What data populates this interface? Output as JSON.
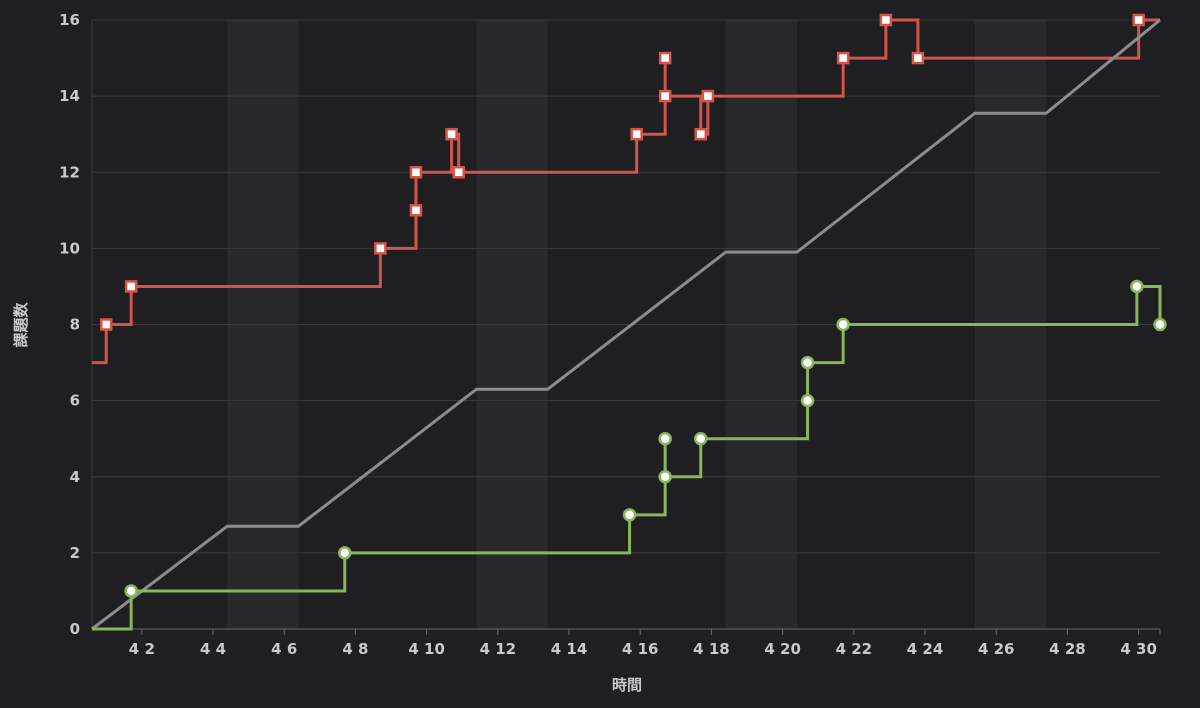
{
  "chart_data": {
    "type": "line",
    "title": "",
    "xlabel": "時間",
    "ylabel": "課題数",
    "grid": true,
    "legend": "none",
    "ylim": [
      0,
      16
    ],
    "xlim": [
      0.6,
      30.6
    ],
    "x_ticks": [
      {
        "value": 2,
        "label": "4 2"
      },
      {
        "value": 4,
        "label": "4 4"
      },
      {
        "value": 6,
        "label": "4 6"
      },
      {
        "value": 8,
        "label": "4 8"
      },
      {
        "value": 10,
        "label": "4 10"
      },
      {
        "value": 12,
        "label": "4 12"
      },
      {
        "value": 14,
        "label": "4 14"
      },
      {
        "value": 16,
        "label": "4 16"
      },
      {
        "value": 18,
        "label": "4 18"
      },
      {
        "value": 20,
        "label": "4 20"
      },
      {
        "value": 22,
        "label": "4 22"
      },
      {
        "value": 24,
        "label": "4 24"
      },
      {
        "value": 26,
        "label": "4 26"
      },
      {
        "value": 28,
        "label": "4 28"
      },
      {
        "value": 30,
        "label": "4 30"
      }
    ],
    "y_ticks": [
      {
        "value": 0,
        "label": "0"
      },
      {
        "value": 2,
        "label": "2"
      },
      {
        "value": 4,
        "label": "4"
      },
      {
        "value": 6,
        "label": "6"
      },
      {
        "value": 8,
        "label": "8"
      },
      {
        "value": 10,
        "label": "10"
      },
      {
        "value": 12,
        "label": "12"
      },
      {
        "value": 14,
        "label": "14"
      },
      {
        "value": 16,
        "label": "16"
      }
    ],
    "weekend_bands": [
      [
        4.4,
        6.4
      ],
      [
        11.4,
        13.4
      ],
      [
        18.4,
        20.4
      ],
      [
        25.4,
        27.4
      ]
    ],
    "series": [
      {
        "color": "#d2544a",
        "style": "step",
        "marker": "square",
        "points": [
          {
            "x": 0.6,
            "y": 7,
            "marker": false
          },
          {
            "x": 1.0,
            "y": 8,
            "marker": true
          },
          {
            "x": 1.7,
            "y": 9,
            "marker": true
          },
          {
            "x": 8.7,
            "y": 10,
            "marker": true
          },
          {
            "x": 9.7,
            "y": 11,
            "marker": true
          },
          {
            "x": 9.7,
            "y": 12,
            "marker": true
          },
          {
            "x": 10.7,
            "y": 13,
            "marker": true
          },
          {
            "x": 10.9,
            "y": 12,
            "marker": true
          },
          {
            "x": 15.9,
            "y": 13,
            "marker": true
          },
          {
            "x": 16.7,
            "y": 15,
            "marker": true
          },
          {
            "x": 16.7,
            "y": 14,
            "marker": true
          },
          {
            "x": 17.7,
            "y": 13,
            "marker": true
          },
          {
            "x": 17.9,
            "y": 14,
            "marker": true
          },
          {
            "x": 21.7,
            "y": 15,
            "marker": true
          },
          {
            "x": 22.9,
            "y": 16,
            "marker": true
          },
          {
            "x": 23.8,
            "y": 15,
            "marker": true
          },
          {
            "x": 30.0,
            "y": 16,
            "marker": true
          },
          {
            "x": 30.6,
            "y": 16,
            "marker": false
          }
        ]
      },
      {
        "color": "#8c8c90",
        "style": "line",
        "marker": "none",
        "points": [
          {
            "x": 0.6,
            "y": 0
          },
          {
            "x": 4.4,
            "y": 2.7
          },
          {
            "x": 6.4,
            "y": 2.7
          },
          {
            "x": 11.4,
            "y": 6.3
          },
          {
            "x": 13.4,
            "y": 6.3
          },
          {
            "x": 18.4,
            "y": 9.9
          },
          {
            "x": 20.4,
            "y": 9.9
          },
          {
            "x": 25.4,
            "y": 13.55
          },
          {
            "x": 27.4,
            "y": 13.55
          },
          {
            "x": 30.6,
            "y": 16
          }
        ]
      },
      {
        "color": "#8ab55a",
        "style": "step",
        "marker": "circle",
        "points": [
          {
            "x": 0.6,
            "y": 0,
            "marker": false
          },
          {
            "x": 1.7,
            "y": 1,
            "marker": true
          },
          {
            "x": 7.7,
            "y": 2,
            "marker": true
          },
          {
            "x": 15.7,
            "y": 3,
            "marker": true
          },
          {
            "x": 16.7,
            "y": 5,
            "marker": true
          },
          {
            "x": 16.7,
            "y": 4,
            "marker": true
          },
          {
            "x": 17.7,
            "y": 5,
            "marker": true
          },
          {
            "x": 20.7,
            "y": 6,
            "marker": true
          },
          {
            "x": 20.7,
            "y": 7,
            "marker": true
          },
          {
            "x": 21.7,
            "y": 8,
            "marker": true
          },
          {
            "x": 29.95,
            "y": 9,
            "marker": true
          },
          {
            "x": 30.6,
            "y": 8,
            "marker": true
          }
        ]
      }
    ]
  }
}
